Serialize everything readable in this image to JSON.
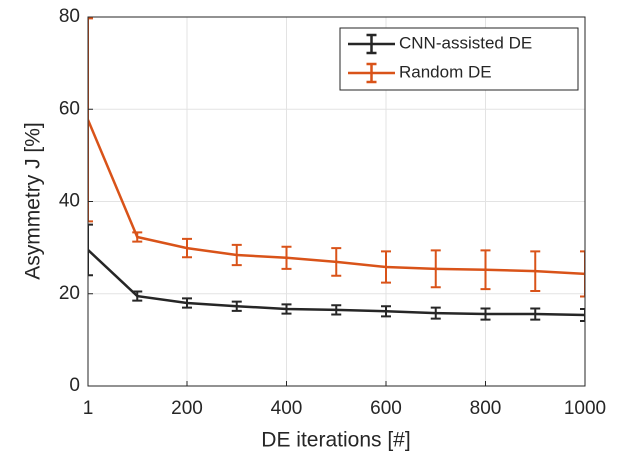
{
  "chart_data": {
    "type": "line",
    "xlabel": "DE iterations [#]",
    "ylabel": "Asymmetry J [%]",
    "x": [
      1,
      100,
      200,
      300,
      400,
      500,
      600,
      700,
      800,
      900,
      1000
    ],
    "series": [
      {
        "name": "CNN-assisted DE",
        "color": "#262626",
        "values": [
          29.5,
          19.5,
          18,
          17.3,
          16.7,
          16.5,
          16.2,
          15.8,
          15.6,
          15.6,
          15.4
        ],
        "errors": [
          5.5,
          1,
          1,
          1,
          1,
          1,
          1.1,
          1.2,
          1.2,
          1.2,
          1.3
        ]
      },
      {
        "name": "Random DE",
        "color": "#d95319",
        "values": [
          57.7,
          32.3,
          29.9,
          28.4,
          27.8,
          26.9,
          25.8,
          25.4,
          25.2,
          24.9,
          24.3
        ],
        "errors": [
          22,
          1,
          2,
          2.2,
          2.4,
          3,
          3.4,
          4,
          4.2,
          4.3,
          4.9
        ]
      }
    ],
    "xlim": [
      1,
      1000
    ],
    "xticks": [
      1,
      200,
      400,
      600,
      800,
      1000
    ],
    "ylim": [
      0,
      80
    ],
    "yticks": [
      0,
      20,
      40,
      60,
      80
    ],
    "grid": true,
    "legend_position": "upper right"
  }
}
